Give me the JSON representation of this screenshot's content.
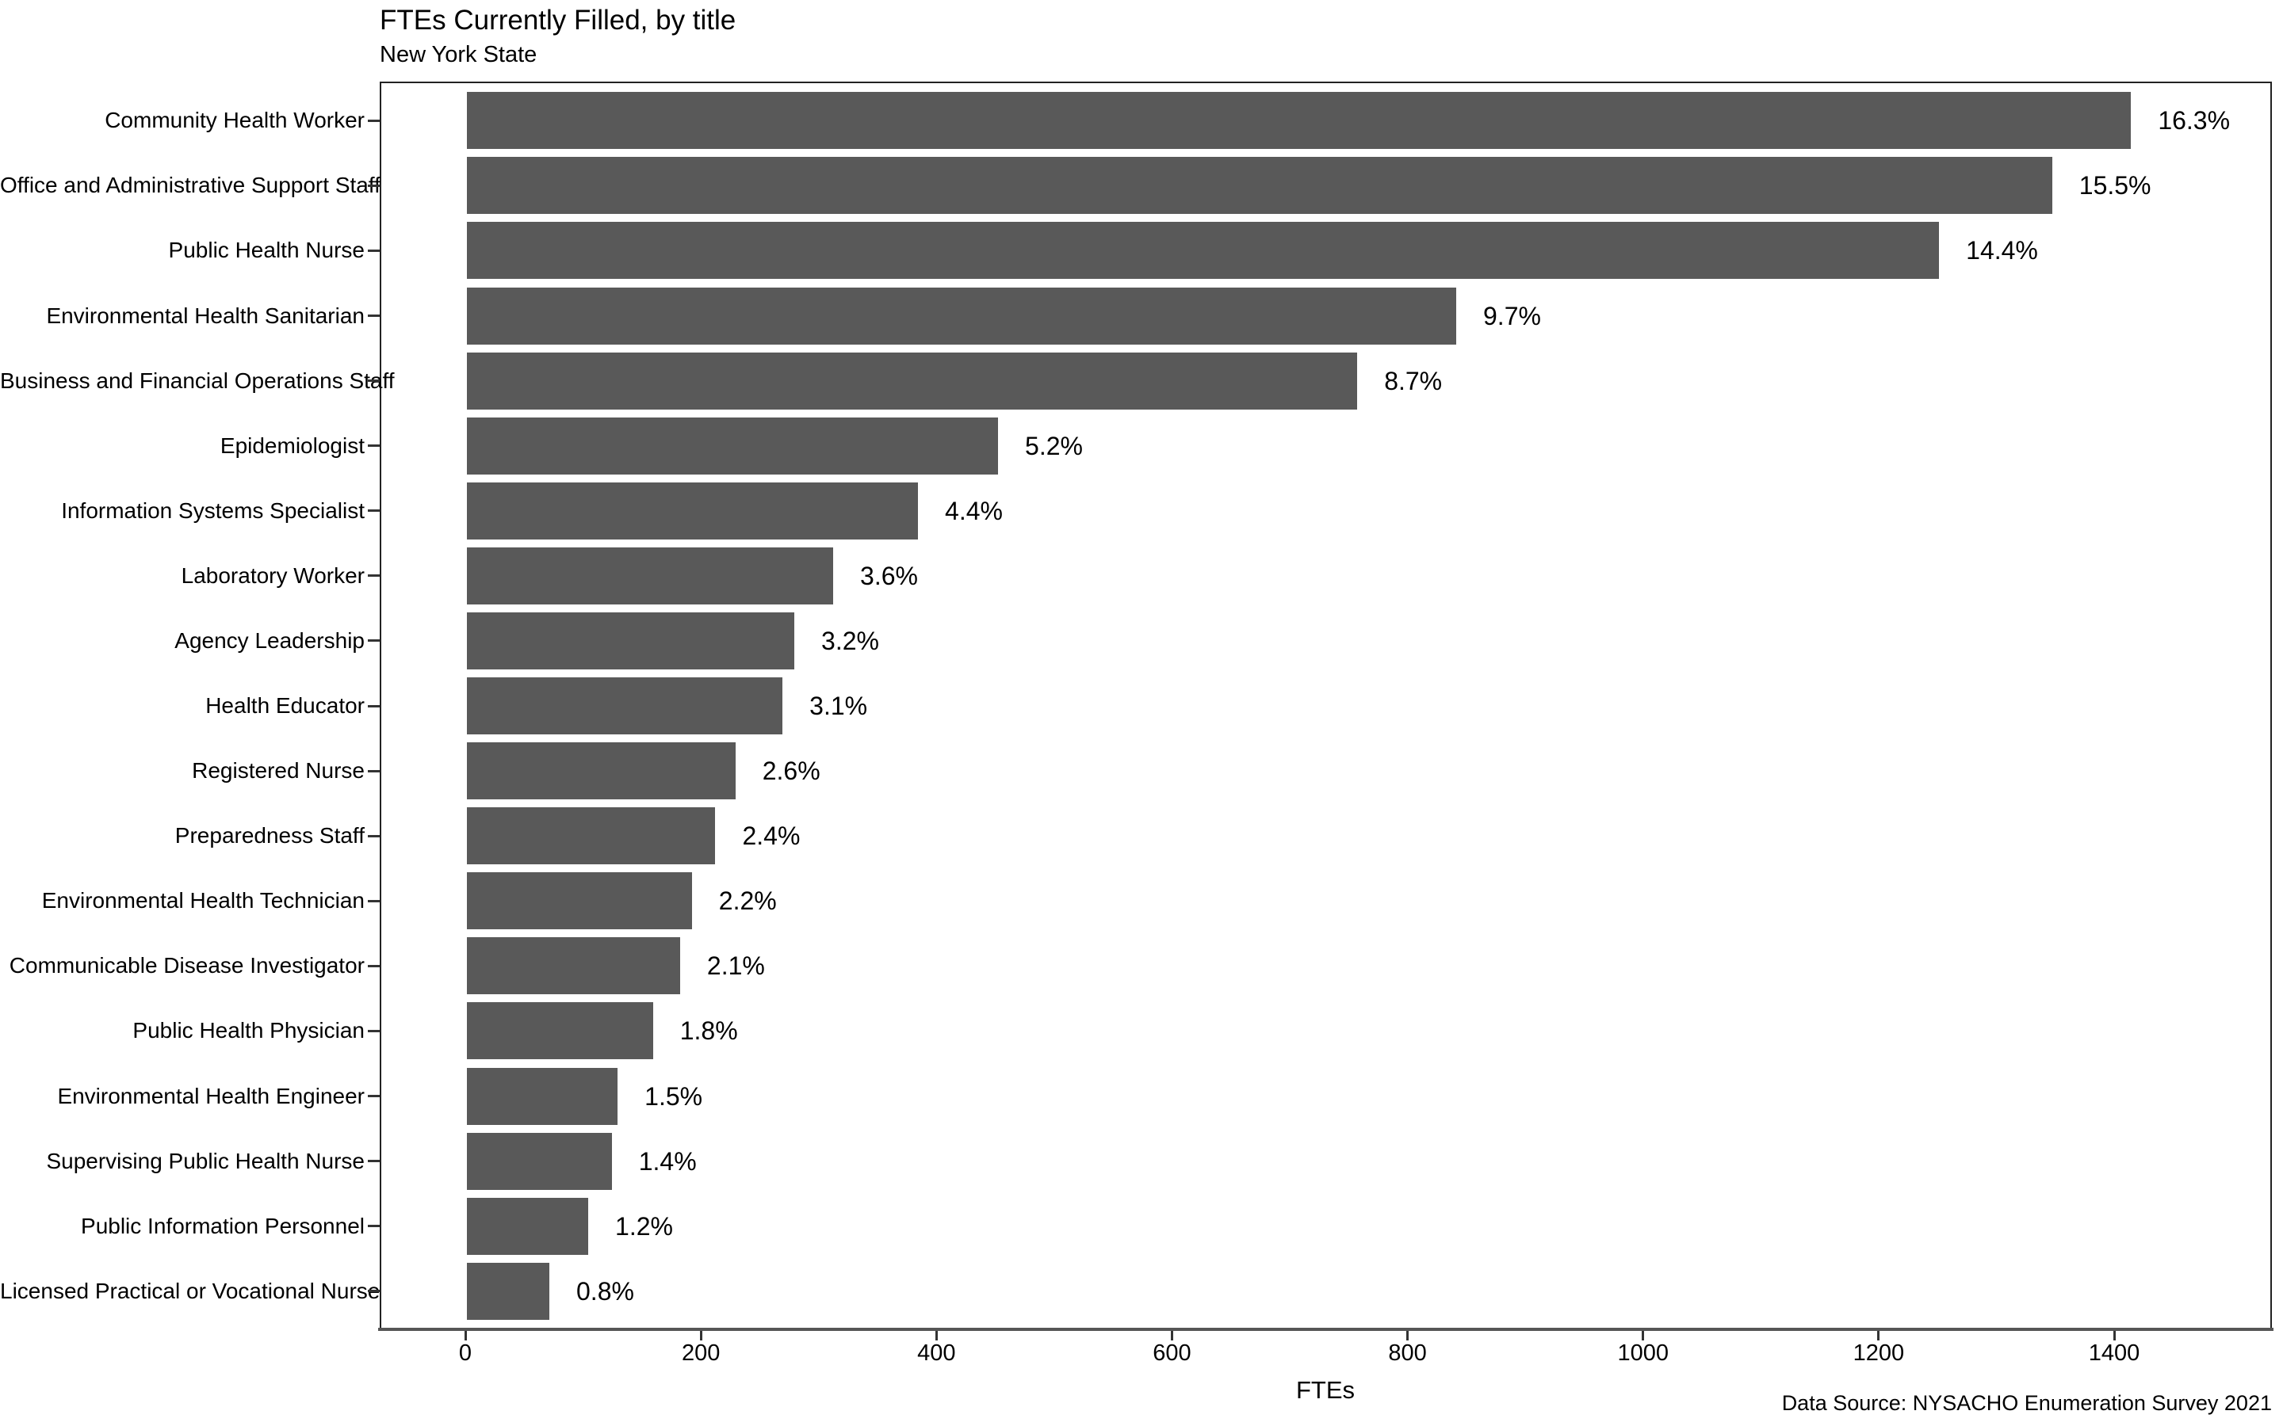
{
  "chart_data": {
    "type": "bar",
    "orientation": "horizontal",
    "title": "FTEs Currently Filled, by title",
    "subtitle": "New York State",
    "xlabel": "FTEs",
    "caption": "Data Source: NYSACHO Enumeration Survey 2021",
    "x_ticks": [
      0,
      200,
      400,
      600,
      800,
      1000,
      1200,
      1400
    ],
    "xlim": [
      -73,
      1534
    ],
    "grid": false,
    "legend": false,
    "bar_color": "#595959",
    "axis_color": "#222222",
    "text_color": "#000000",
    "categories": [
      "Community Health Worker",
      "Office and Administrative Support Staff",
      "Public Health Nurse",
      "Environmental Health Sanitarian",
      "Business and Financial Operations Staff",
      "Epidemiologist",
      "Information Systems Specialist",
      "Laboratory Worker",
      "Agency Leadership",
      "Health Educator",
      "Registered Nurse",
      "Preparedness Staff",
      "Environmental Health Technician",
      "Communicable Disease Investigator",
      "Public Health Physician",
      "Environmental Health Engineer",
      "Supervising Public Health Nurse",
      "Public Information Personnel",
      "Licensed Practical or Vocational Nurse"
    ],
    "values_fte": [
      1413,
      1346,
      1250,
      840,
      756,
      451,
      383,
      311,
      278,
      268,
      228,
      211,
      191,
      181,
      158,
      128,
      123,
      103,
      70
    ],
    "bar_labels": [
      "16.3%",
      "15.5%",
      "14.4%",
      "9.7%",
      "8.7%",
      "5.2%",
      "4.4%",
      "3.6%",
      "3.2%",
      "3.1%",
      "2.6%",
      "2.4%",
      "2.2%",
      "2.1%",
      "1.8%",
      "1.5%",
      "1.4%",
      "1.2%",
      "0.8%"
    ]
  }
}
